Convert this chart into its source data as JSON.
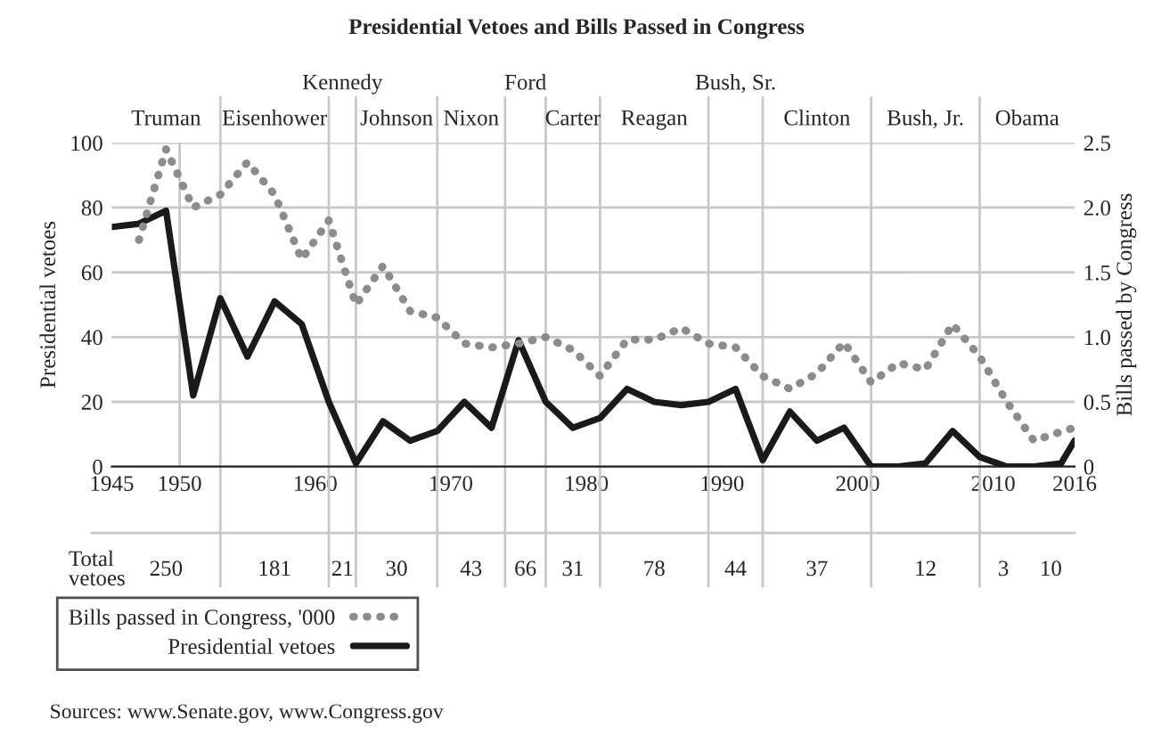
{
  "chart_data": {
    "type": "line",
    "title": "Presidential Vetoes and Bills Passed in Congress",
    "xlabel": null,
    "ylabel": "Presidential vetoes",
    "y2label": "Bills passed by Congress",
    "xlim": [
      1945,
      2016
    ],
    "xticks": [
      1945,
      1950,
      1960,
      1970,
      1980,
      1990,
      2000,
      2010,
      2016
    ],
    "ylim": [
      0,
      100
    ],
    "yticks": [
      0,
      20,
      40,
      60,
      80,
      100
    ],
    "y2lim": [
      0,
      2.5
    ],
    "y2ticks": [
      {
        "value": 0,
        "label": "0"
      },
      {
        "value": 0.5,
        "label": "0.5"
      },
      {
        "value": 1,
        "label": "1.0"
      },
      {
        "value": 1.5,
        "label": "1.5"
      },
      {
        "value": 2,
        "label": "2.0"
      },
      {
        "value": 2.5,
        "label": "2.5"
      }
    ],
    "grid": "y",
    "legend": "bottom left",
    "series": [
      {
        "name": "Bills passed in Congress, '000",
        "color": "#8c8c8c",
        "axis": "y2",
        "line_style": "dotted",
        "x": [
          1947,
          1949,
          1951,
          1953,
          1955,
          1957,
          1959,
          1961,
          1963,
          1965,
          1967,
          1969,
          1971,
          1973,
          1975,
          1977,
          1979,
          1981,
          1983,
          1985,
          1987,
          1989,
          1991,
          1993,
          1995,
          1997,
          1999,
          2001,
          2003,
          2005,
          2007,
          2009,
          2011,
          2013,
          2015,
          2016
        ],
        "values": [
          1.75,
          2.45,
          2.0,
          2.1,
          2.35,
          2.1,
          1.6,
          1.9,
          1.25,
          1.55,
          1.2,
          1.15,
          0.95,
          0.92,
          0.95,
          1.0,
          0.9,
          0.7,
          0.98,
          0.98,
          1.07,
          0.95,
          0.92,
          0.7,
          0.6,
          0.72,
          0.96,
          0.65,
          0.8,
          0.75,
          1.1,
          0.85,
          0.5,
          0.2,
          0.27,
          0.3
        ]
      },
      {
        "name": "Presidential vetoes",
        "color": "#1a1a1a",
        "line_style": "solid",
        "x": [
          1945,
          1947,
          1949,
          1951,
          1953,
          1955,
          1957,
          1959,
          1961,
          1963,
          1965,
          1967,
          1969,
          1971,
          1973,
          1975,
          1977,
          1979,
          1981,
          1983,
          1985,
          1987,
          1989,
          1991,
          1993,
          1995,
          1997,
          1999,
          2001,
          2003,
          2005,
          2007,
          2009,
          2011,
          2013,
          2015,
          2016
        ],
        "values": [
          74,
          75,
          79,
          22,
          52,
          34,
          51,
          44,
          20,
          1,
          14,
          8,
          11,
          20,
          12,
          39,
          20,
          12,
          15,
          24,
          20,
          19,
          20,
          24,
          2,
          17,
          8,
          12,
          0,
          0,
          1,
          11,
          3,
          0,
          0,
          1,
          8
        ]
      }
    ],
    "ref_lines": [
      {
        "axis": "x",
        "value": 1950,
        "color": "#c8c8c8"
      },
      {
        "axis": "x",
        "value": 1953,
        "color": "#c8c8c8"
      },
      {
        "axis": "x",
        "value": 1961,
        "color": "#c8c8c8"
      },
      {
        "axis": "x",
        "value": 1963,
        "color": "#c8c8c8"
      },
      {
        "axis": "x",
        "value": 1969,
        "color": "#c8c8c8"
      },
      {
        "axis": "x",
        "value": 1974,
        "color": "#c8c8c8"
      },
      {
        "axis": "x",
        "value": 1977,
        "color": "#c8c8c8"
      },
      {
        "axis": "x",
        "value": 1981,
        "color": "#c8c8c8"
      },
      {
        "axis": "x",
        "value": 1989,
        "color": "#c8c8c8"
      },
      {
        "axis": "x",
        "value": 1993,
        "color": "#c8c8c8"
      },
      {
        "axis": "x",
        "value": 2001,
        "color": "#c8c8c8"
      },
      {
        "axis": "x",
        "value": 2009,
        "color": "#c8c8c8"
      }
    ],
    "annotations": [
      "Truman",
      "Eisenhower",
      "Kennedy",
      "Johnson",
      "Nixon",
      "Ford",
      "Carter",
      "Reagan",
      "Bush, Sr.",
      "Clinton",
      "Bush, Jr.",
      "Obama",
      "Total\nvetoes",
      "250",
      "181",
      "21",
      "30",
      "43",
      "66",
      "31",
      "78",
      "44",
      "37",
      "12",
      "3",
      "10",
      "Sources: www.Senate.gov, www.Congress.gov"
    ]
  }
}
